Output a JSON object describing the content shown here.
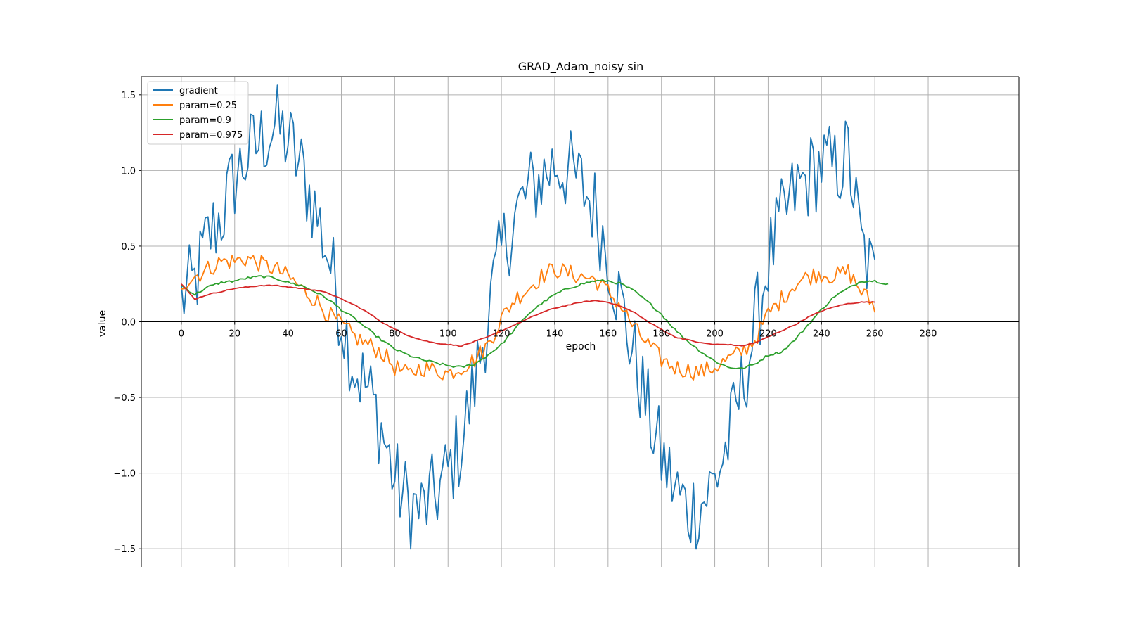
{
  "chart_data": {
    "type": "line",
    "title": "GRAD_Adam_noisy sin",
    "xlabel": "epoch",
    "ylabel": "value",
    "xlim": [
      -15,
      314
    ],
    "ylim": [
      -1.62,
      1.62
    ],
    "xticks": [
      0,
      20,
      40,
      60,
      80,
      100,
      120,
      140,
      160,
      180,
      200,
      220,
      240,
      260,
      280
    ],
    "yticks": [
      -1.5,
      -1.0,
      -0.5,
      0.0,
      0.5,
      1.0,
      1.5
    ],
    "ytick_labels": [
      "−1.5",
      "−1.0",
      "−0.5",
      "0.0",
      "0.5",
      "1.0",
      "1.5"
    ],
    "grid": true,
    "legend_position": "top-left",
    "x_axis_position": "y=0",
    "series": [
      {
        "name": "gradient",
        "color": "#1f77b4",
        "x_start": 0,
        "x_step": 5,
        "values": [
          0.15,
          0.25,
          0.55,
          0.7,
          0.95,
          1.1,
          1.2,
          1.3,
          1.2,
          1.0,
          0.75,
          0.45,
          0.05,
          -0.3,
          -0.45,
          -0.7,
          -1.05,
          -1.2,
          -1.25,
          -1.15,
          -1.0,
          -0.8,
          -0.4,
          0.05,
          0.45,
          0.7,
          0.85,
          0.95,
          1.05,
          1.0,
          0.9,
          0.75,
          0.45,
          0.1,
          -0.25,
          -0.6,
          -0.9,
          -1.1,
          -1.25,
          -1.2,
          -1.05,
          -0.8,
          -0.45,
          -0.05,
          0.4,
          0.65,
          0.85,
          0.95,
          1.05,
          1.0,
          1.1,
          0.5,
          0.25
        ],
        "noise_amplitude": 0.3
      },
      {
        "name": "param=0.25",
        "color": "#ff7f0e",
        "x_start": 0,
        "x_step": 5,
        "values": [
          0.25,
          0.3,
          0.35,
          0.4,
          0.4,
          0.42,
          0.38,
          0.35,
          0.3,
          0.22,
          0.15,
          0.05,
          -0.02,
          -0.1,
          -0.15,
          -0.2,
          -0.3,
          -0.35,
          -0.3,
          -0.32,
          -0.34,
          -0.3,
          -0.25,
          -0.15,
          0.02,
          0.15,
          0.22,
          0.3,
          0.35,
          0.32,
          0.3,
          0.28,
          0.2,
          0.1,
          -0.05,
          -0.15,
          -0.25,
          -0.3,
          -0.32,
          -0.33,
          -0.3,
          -0.25,
          -0.2,
          -0.12,
          0.05,
          0.15,
          0.25,
          0.3,
          0.32,
          0.3,
          0.33,
          0.2,
          0.1
        ],
        "noise_amplitude": 0.06
      },
      {
        "name": "param=0.9",
        "color": "#2ca02c",
        "x_start": 0,
        "x_step": 5,
        "values": [
          0.24,
          0.18,
          0.23,
          0.26,
          0.27,
          0.29,
          0.3,
          0.29,
          0.26,
          0.24,
          0.2,
          0.15,
          0.08,
          0.02,
          -0.05,
          -0.12,
          -0.18,
          -0.22,
          -0.25,
          -0.27,
          -0.29,
          -0.3,
          -0.28,
          -0.22,
          -0.15,
          -0.05,
          0.05,
          0.12,
          0.18,
          0.22,
          0.25,
          0.27,
          0.27,
          0.25,
          0.2,
          0.13,
          0.05,
          -0.05,
          -0.13,
          -0.2,
          -0.26,
          -0.3,
          -0.31,
          -0.28,
          -0.22,
          -0.2,
          -0.12,
          -0.02,
          0.08,
          0.17,
          0.22,
          0.27,
          0.27,
          0.25
        ],
        "noise_amplitude": 0.008
      },
      {
        "name": "param=0.975",
        "color": "#d62728",
        "x_start": 0,
        "x_step": 5,
        "values": [
          0.25,
          0.15,
          0.18,
          0.2,
          0.22,
          0.23,
          0.24,
          0.24,
          0.23,
          0.22,
          0.21,
          0.19,
          0.15,
          0.11,
          0.06,
          0.0,
          -0.05,
          -0.09,
          -0.12,
          -0.14,
          -0.15,
          -0.16,
          -0.13,
          -0.1,
          -0.06,
          -0.02,
          0.02,
          0.06,
          0.09,
          0.11,
          0.13,
          0.14,
          0.13,
          0.1,
          0.06,
          0.0,
          -0.05,
          -0.1,
          -0.12,
          -0.14,
          -0.15,
          -0.15,
          -0.16,
          -0.14,
          -0.1,
          -0.06,
          -0.02,
          0.03,
          0.07,
          0.1,
          0.12,
          0.13,
          0.13
        ],
        "noise_amplitude": 0.003
      }
    ]
  }
}
